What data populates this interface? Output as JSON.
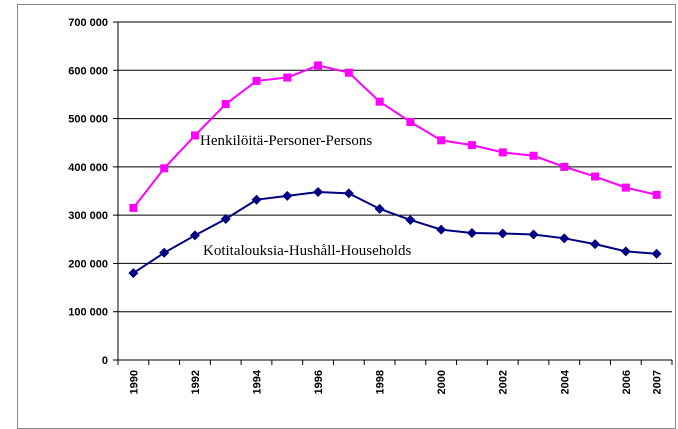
{
  "chart_data": {
    "type": "line",
    "categories": [
      1990,
      null,
      1992,
      null,
      1994,
      null,
      1996,
      null,
      1998,
      null,
      2000,
      null,
      2002,
      null,
      2004,
      null,
      2006,
      2007
    ],
    "series": [
      {
        "name": "Henkilöitä-Personer-Persons",
        "color": "#ff00ff",
        "marker": "square",
        "values": [
          315000,
          397000,
          465000,
          530000,
          578000,
          585000,
          610000,
          595000,
          535000,
          493000,
          455000,
          445000,
          430000,
          423000,
          400000,
          380000,
          357000,
          342000
        ]
      },
      {
        "name": "Kotitalouksia-Hushåll-Households",
        "color": "#000080",
        "marker": "diamond",
        "values": [
          180000,
          222000,
          258000,
          292000,
          332000,
          340000,
          348000,
          345000,
          313000,
          290000,
          270000,
          263000,
          262000,
          260000,
          252000,
          240000,
          225000,
          220000
        ]
      }
    ],
    "ylim": [
      0,
      700000
    ],
    "yticks": [
      0,
      {
        "value": 100000,
        "label": "100 000"
      },
      {
        "value": 200000,
        "label": "200 000"
      },
      {
        "value": 300000,
        "label": "300 000"
      },
      {
        "value": 400000,
        "label": "400 000"
      },
      {
        "value": 500000,
        "label": "500 000"
      },
      {
        "value": 600000,
        "label": "600 000"
      },
      {
        "value": 700000,
        "label": "700 000"
      }
    ],
    "grid": true
  }
}
